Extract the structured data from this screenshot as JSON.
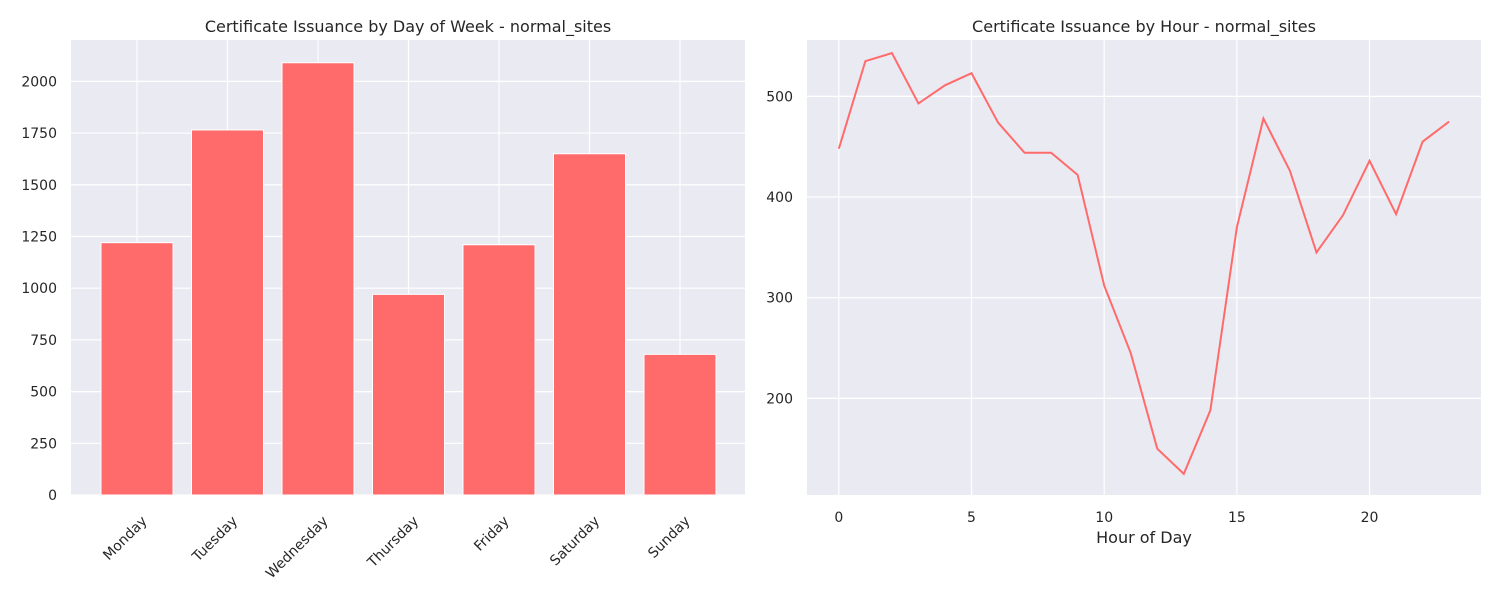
{
  "chart_data": [
    {
      "type": "bar",
      "title": "Certificate Issuance by Day of Week - normal_sites",
      "xlabel": "",
      "ylabel": "",
      "categories": [
        "Monday",
        "Tuesday",
        "Wednesday",
        "Thursday",
        "Friday",
        "Saturday",
        "Sunday"
      ],
      "values": [
        1220,
        1765,
        2090,
        970,
        1210,
        1650,
        680
      ],
      "ylim": [
        0,
        2200
      ],
      "yticks": [
        0,
        250,
        500,
        750,
        1000,
        1250,
        1500,
        1750,
        2000
      ],
      "color": "#ff6b6b",
      "grid": true,
      "legend": "none"
    },
    {
      "type": "line",
      "title": "Certificate Issuance by Hour - normal_sites",
      "xlabel": "Hour of Day",
      "ylabel": "",
      "x": [
        0,
        1,
        2,
        3,
        4,
        5,
        6,
        7,
        8,
        9,
        10,
        11,
        12,
        13,
        14,
        15,
        16,
        17,
        18,
        19,
        20,
        21,
        22,
        23
      ],
      "values": [
        448,
        535,
        543,
        493,
        511,
        523,
        474,
        444,
        444,
        422,
        312,
        245,
        150,
        125,
        188,
        370,
        478,
        426,
        345,
        382,
        436,
        383,
        455,
        475
      ],
      "xlim": [
        -1.2,
        24.2
      ],
      "ylim": [
        104,
        556
      ],
      "xticks": [
        0,
        5,
        10,
        15,
        20
      ],
      "yticks": [
        200,
        300,
        400,
        500
      ],
      "color": "#ff6b6b",
      "grid": true,
      "legend": "none"
    }
  ]
}
